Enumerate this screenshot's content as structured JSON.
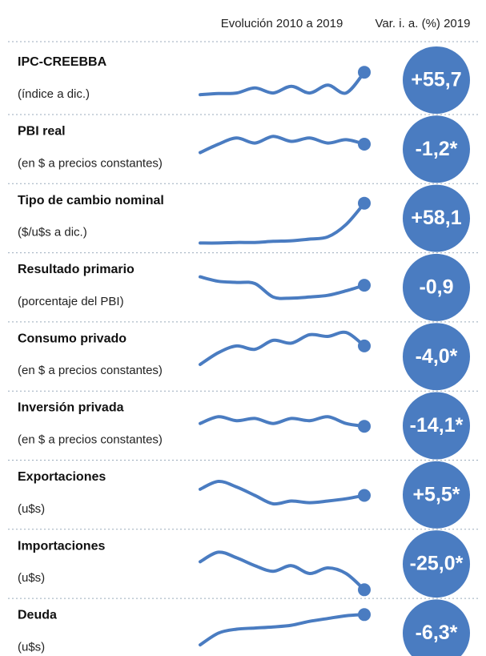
{
  "header": {
    "evolution": "Evolución 2010 a 2019",
    "variation": "Var. i. a. (%) 2019"
  },
  "trend_ylim": [
    0,
    100
  ],
  "rows": [
    {
      "name": "IPC-CREEBBA",
      "unit": "(índice a dic.)",
      "value": "+55,7",
      "trend": [
        24,
        26,
        27,
        36,
        27,
        39,
        27,
        41,
        27,
        64
      ]
    },
    {
      "name": "PBI real",
      "unit": "(en $ a precios constantes)",
      "value": "-1,2*",
      "trend": [
        44,
        59,
        70,
        61,
        73,
        64,
        70,
        61,
        67,
        59
      ]
    },
    {
      "name": "Tipo de cambio nominal",
      "unit": "($/u$s a dic.)",
      "value": "+58,1",
      "trend": [
        6,
        6,
        7,
        7,
        9,
        10,
        13,
        17,
        39,
        77
      ]
    },
    {
      "name": "Resultado primario",
      "unit": "(porcentaje del PBI)",
      "value": "-0,9",
      "trend": [
        69,
        61,
        59,
        57,
        33,
        31,
        33,
        36,
        44,
        54
      ]
    },
    {
      "name": "Consumo privado",
      "unit": "(en $ a precios constantes)",
      "value": "-4,0*",
      "trend": [
        36,
        57,
        69,
        63,
        79,
        74,
        89,
        86,
        93,
        69
      ]
    },
    {
      "name": "Inversión privada",
      "unit": "(en $ a precios constantes)",
      "value": "-14,1*",
      "trend": [
        54,
        66,
        59,
        63,
        54,
        63,
        59,
        66,
        54,
        49
      ]
    },
    {
      "name": "Exportaciones",
      "unit": "(u$s)",
      "value": "+5,5*",
      "trend": [
        60,
        74,
        64,
        49,
        34,
        39,
        36,
        39,
        43,
        49
      ]
    },
    {
      "name": "Importaciones",
      "unit": "(u$s)",
      "value": "-25,0*",
      "trend": [
        54,
        71,
        61,
        47,
        37,
        47,
        33,
        43,
        33,
        4
      ]
    },
    {
      "name": "Deuda",
      "unit": "(u$s)",
      "value": "-6,3*",
      "trend": [
        29,
        50,
        57,
        59,
        61,
        64,
        71,
        76,
        81,
        83
      ]
    }
  ]
}
